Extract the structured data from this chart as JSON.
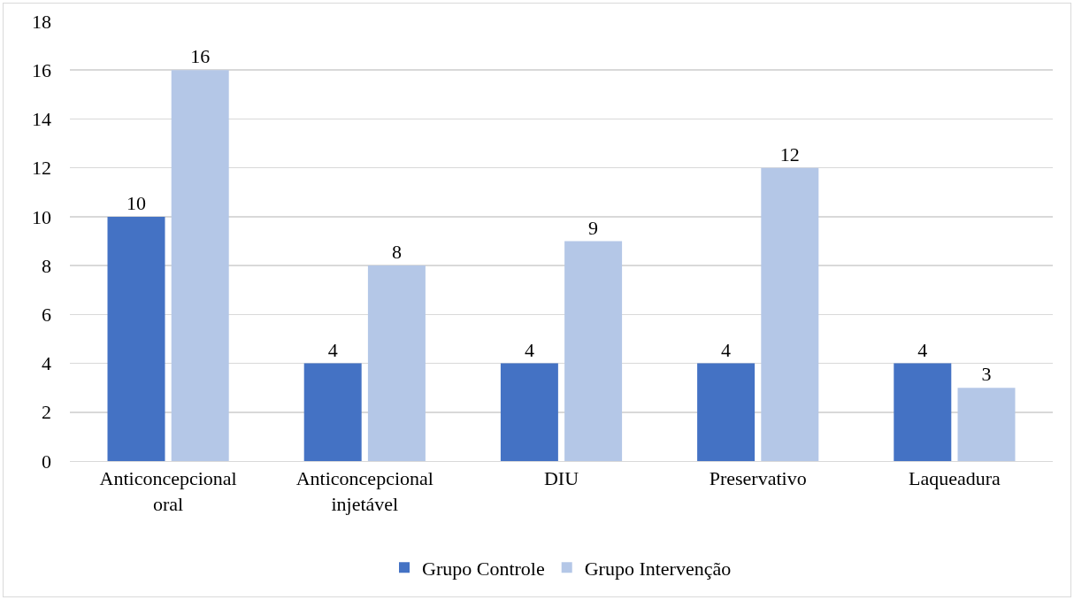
{
  "chart_data": {
    "type": "bar",
    "categories": [
      "Anticoncepcional oral",
      "Anticoncepcional injetável",
      "DIU",
      "Preservativo",
      "Laqueadura"
    ],
    "series": [
      {
        "name": "Grupo Controle",
        "color": "#4472c4",
        "values": [
          10,
          4,
          4,
          4,
          4
        ]
      },
      {
        "name": "Grupo Intervenção",
        "color": "#b4c7e7",
        "values": [
          16,
          8,
          9,
          12,
          3
        ]
      }
    ],
    "ylim": [
      0,
      18
    ],
    "yticks": [
      0,
      2,
      4,
      6,
      8,
      10,
      12,
      14,
      16,
      18
    ],
    "grid": "y",
    "legend": "bottom",
    "data_labels": true
  }
}
